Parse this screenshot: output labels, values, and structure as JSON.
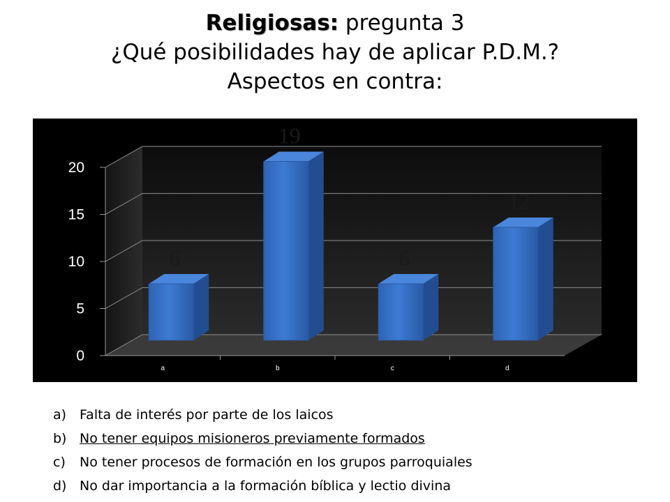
{
  "title": {
    "bold": "Religiosas:",
    "rest": " pregunta 3",
    "line2": "¿Qué posibilidades hay de aplicar P.D.M.?",
    "line3": "Aspectos en contra:"
  },
  "chart_data": {
    "type": "bar",
    "style": "3d-column",
    "categories": [
      "a",
      "b",
      "c",
      "d"
    ],
    "values": [
      6,
      19,
      6,
      12
    ],
    "data_labels": [
      "6",
      "19",
      "6",
      "12"
    ],
    "yticks": [
      "0",
      "5",
      "10",
      "15",
      "20"
    ],
    "ylim": [
      0,
      20
    ],
    "grid": true,
    "legend": "none",
    "bar_color": "#3a75c9",
    "background_color": "#000000"
  },
  "legend_items": [
    {
      "marker": "a)",
      "text": "Falta de interés por parte de los laicos"
    },
    {
      "marker": "b)",
      "text": "No tener equipos misioneros previamente formados",
      "underlined": true
    },
    {
      "marker": "c)",
      "text": "No tener procesos de formación en los grupos parroquiales"
    },
    {
      "marker": "d)",
      "text": "No dar importancia a la formación bíblica y lectio divina"
    }
  ]
}
